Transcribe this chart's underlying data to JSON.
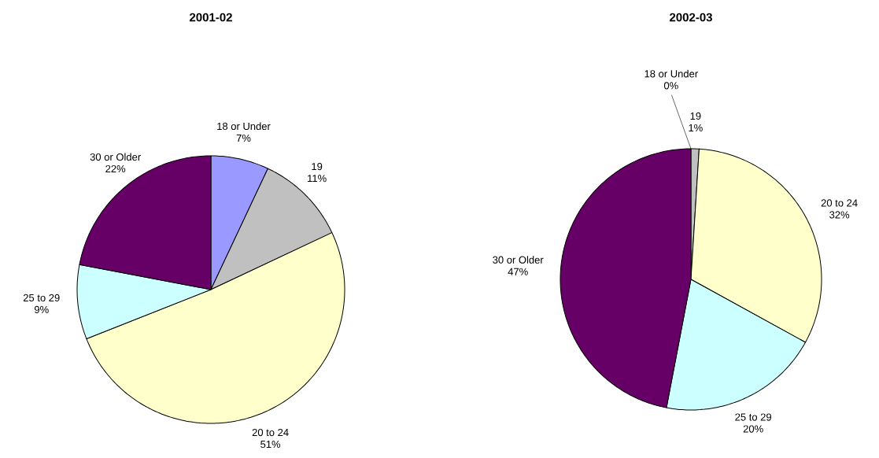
{
  "chart_data": [
    {
      "type": "pie",
      "title": "2001-02",
      "categories": [
        "18 or Under",
        "19",
        "20 to 24",
        "25 to 29",
        "30 or Older"
      ],
      "values": [
        7,
        11,
        51,
        9,
        22
      ],
      "value_labels": [
        "7%",
        "11%",
        "51%",
        "9%",
        "22%"
      ],
      "colors": [
        "#9999ff",
        "#c0c0c0",
        "#ffffcc",
        "#ccffff",
        "#660066"
      ]
    },
    {
      "type": "pie",
      "title": "2002-03",
      "categories": [
        "18 or Under",
        "19",
        "20 to 24",
        "25 to 29",
        "30 or Older"
      ],
      "values": [
        0,
        1,
        32,
        20,
        47
      ],
      "value_labels": [
        "0%",
        "1%",
        "32%",
        "20%",
        "47%"
      ],
      "colors": [
        "#9999ff",
        "#c0c0c0",
        "#ffffcc",
        "#ccffff",
        "#660066"
      ]
    }
  ]
}
